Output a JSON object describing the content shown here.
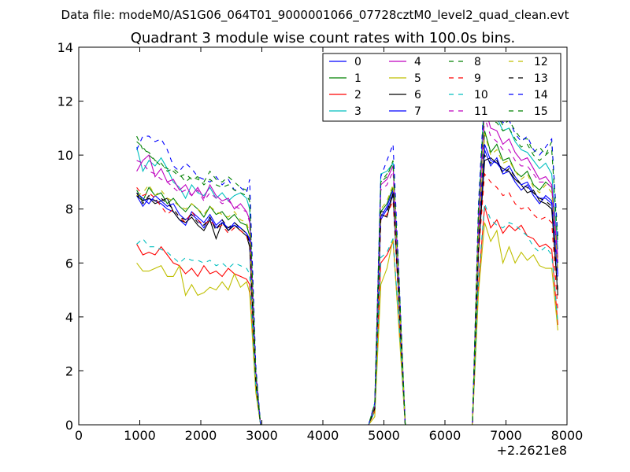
{
  "figure": {
    "suptitle": "Data file: modeM0/AS1G06_064T01_9000001066_07728cztM0_level2_quad_clean.evt"
  },
  "chart_data": {
    "type": "line",
    "title": "Quadrant 3 module wise count rates with 100.0s bins.",
    "xlabel": "",
    "ylabel": "",
    "x_offset_label": "+2.2621e8",
    "xlim": [
      0,
      8000
    ],
    "ylim": [
      0,
      14
    ],
    "xticks": [
      0,
      1000,
      2000,
      3000,
      4000,
      5000,
      6000,
      7000,
      8000
    ],
    "yticks": [
      0,
      2,
      4,
      6,
      8,
      10,
      12,
      14
    ],
    "legend_position": "top-right",
    "legend_columns": 4,
    "x": [
      950,
      1050,
      1150,
      1250,
      1350,
      1450,
      1550,
      1650,
      1750,
      1850,
      1950,
      2050,
      2150,
      2250,
      2350,
      2450,
      2550,
      2650,
      2750,
      2800,
      2900,
      2980,
      3100,
      4750,
      4850,
      4950,
      5050,
      5150,
      5250,
      5350,
      6450,
      6550,
      6650,
      6750,
      6850,
      6950,
      7050,
      7150,
      7250,
      7350,
      7450,
      7550,
      7650,
      7750,
      7850
    ],
    "series": [
      {
        "name": "0",
        "color": "#0000ff",
        "dash": "solid",
        "values": [
          8.5,
          8.1,
          8.4,
          8.3,
          8.2,
          8.0,
          7.9,
          7.6,
          7.4,
          7.9,
          7.7,
          7.5,
          7.8,
          7.4,
          7.6,
          7.2,
          7.5,
          7.3,
          7.1,
          6.8,
          1.6,
          0,
          0,
          0,
          0.6,
          7.6,
          8.0,
          8.5,
          4.5,
          0,
          0,
          6.5,
          10.2,
          9.6,
          9.9,
          9.3,
          9.4,
          9.0,
          8.7,
          8.9,
          8.5,
          8.2,
          8.5,
          8.3,
          5.5
        ]
      },
      {
        "name": "1",
        "color": "#008000",
        "dash": "solid",
        "values": [
          8.7,
          8.3,
          8.8,
          8.5,
          8.6,
          8.2,
          8.4,
          8.1,
          7.9,
          8.2,
          8.0,
          7.7,
          8.1,
          7.8,
          7.9,
          7.6,
          7.8,
          7.5,
          7.4,
          7.0,
          1.7,
          0,
          0,
          0,
          0.6,
          7.9,
          8.2,
          8.8,
          4.7,
          0,
          0,
          6.8,
          10.9,
          10.1,
          10.4,
          9.8,
          9.9,
          9.4,
          9.2,
          9.4,
          8.9,
          8.7,
          9.0,
          8.8,
          6.0
        ]
      },
      {
        "name": "2",
        "color": "#ff0000",
        "dash": "solid",
        "values": [
          6.7,
          6.3,
          6.4,
          6.3,
          6.6,
          6.3,
          6.0,
          5.9,
          5.6,
          5.8,
          5.5,
          5.9,
          5.6,
          5.7,
          5.5,
          5.8,
          5.6,
          5.5,
          5.4,
          5.2,
          1.3,
          0,
          0,
          0,
          0.5,
          6.0,
          6.3,
          6.8,
          3.6,
          0,
          0,
          5.2,
          8.1,
          7.3,
          7.6,
          7.1,
          7.4,
          7.2,
          7.4,
          7.0,
          6.9,
          6.6,
          6.7,
          6.5,
          3.7
        ]
      },
      {
        "name": "3",
        "color": "#00bfbf",
        "dash": "solid",
        "values": [
          10.3,
          9.4,
          9.8,
          9.6,
          9.9,
          9.5,
          9.0,
          8.8,
          8.4,
          8.9,
          8.6,
          8.5,
          8.8,
          8.4,
          8.6,
          8.3,
          8.5,
          8.6,
          8.4,
          8.0,
          2.0,
          0,
          0,
          0,
          0.8,
          9.3,
          9.4,
          9.7,
          5.2,
          0,
          0,
          7.8,
          12.4,
          11.5,
          11.4,
          10.9,
          11.0,
          10.5,
          10.2,
          10.1,
          9.8,
          9.5,
          9.7,
          9.3,
          6.5
        ]
      },
      {
        "name": "4",
        "color": "#bf00bf",
        "dash": "solid",
        "values": [
          9.4,
          9.8,
          10.0,
          9.2,
          9.5,
          9.0,
          9.1,
          8.7,
          8.9,
          8.5,
          8.8,
          8.4,
          8.9,
          8.5,
          8.3,
          8.4,
          8.0,
          8.2,
          7.9,
          7.6,
          1.9,
          0,
          0,
          0,
          0.7,
          8.9,
          9.1,
          9.6,
          5.0,
          0,
          0,
          7.5,
          11.8,
          11.0,
          10.9,
          10.4,
          10.6,
          10.1,
          9.8,
          9.9,
          9.5,
          9.1,
          9.2,
          8.9,
          6.2
        ]
      },
      {
        "name": "5",
        "color": "#bfbf00",
        "dash": "solid",
        "values": [
          6.0,
          5.7,
          5.7,
          5.8,
          5.9,
          5.5,
          5.5,
          5.9,
          4.8,
          5.2,
          4.8,
          4.9,
          5.1,
          5.0,
          5.3,
          5.0,
          5.6,
          5.1,
          5.3,
          4.9,
          1.2,
          0,
          0,
          0,
          0.3,
          5.2,
          5.8,
          6.9,
          3.4,
          0,
          0,
          4.9,
          7.5,
          6.8,
          7.2,
          6.0,
          6.6,
          6.0,
          6.4,
          6.1,
          6.3,
          5.9,
          5.8,
          5.8,
          3.5
        ]
      },
      {
        "name": "6",
        "color": "#000000",
        "dash": "solid",
        "values": [
          8.5,
          8.3,
          8.4,
          8.2,
          8.3,
          8.4,
          7.9,
          7.6,
          7.5,
          7.7,
          7.4,
          7.2,
          7.6,
          6.9,
          7.5,
          7.2,
          7.4,
          7.2,
          7.0,
          6.6,
          1.6,
          0,
          0,
          0,
          0.6,
          7.8,
          7.7,
          8.6,
          4.4,
          0,
          0,
          6.4,
          9.8,
          9.9,
          9.7,
          9.5,
          9.4,
          9.1,
          8.9,
          8.6,
          8.7,
          8.3,
          8.2,
          8.0,
          4.8
        ]
      },
      {
        "name": "7",
        "color": "#0000ff",
        "dash": "solid",
        "values": [
          8.6,
          8.4,
          8.2,
          8.5,
          8.3,
          8.1,
          8.2,
          7.8,
          7.6,
          7.8,
          7.6,
          7.3,
          7.7,
          7.3,
          7.5,
          7.3,
          7.4,
          7.3,
          7.1,
          6.9,
          1.6,
          0,
          0,
          0,
          0.6,
          7.7,
          8.1,
          8.7,
          4.5,
          0,
          0,
          6.7,
          10.4,
          9.8,
          9.7,
          9.4,
          9.6,
          9.2,
          8.9,
          9.0,
          8.6,
          8.4,
          8.4,
          8.2,
          5.6
        ]
      },
      {
        "name": "8",
        "color": "#008000",
        "dash": "dash",
        "values": [
          10.7,
          10.2,
          10.1,
          9.8,
          9.7,
          9.4,
          9.5,
          9.3,
          9.0,
          9.2,
          9.1,
          9.0,
          9.4,
          9.1,
          9.0,
          9.2,
          9.0,
          8.8,
          8.7,
          8.5,
          2.1,
          0,
          0,
          0,
          0.8,
          9.0,
          9.2,
          9.8,
          5.3,
          0,
          0,
          8.0,
          12.1,
          11.8,
          11.5,
          11.1,
          11.3,
          10.9,
          10.6,
          10.6,
          10.1,
          10.3,
          10.0,
          10.5,
          7.0
        ]
      },
      {
        "name": "9",
        "color": "#ff0000",
        "dash": "dash",
        "values": [
          8.8,
          8.5,
          8.6,
          8.4,
          8.1,
          7.8,
          8.0,
          7.7,
          7.5,
          7.9,
          7.6,
          7.4,
          7.6,
          7.3,
          7.4,
          7.1,
          7.3,
          7.2,
          7.0,
          6.7,
          1.6,
          0,
          0,
          0,
          0.6,
          7.6,
          7.8,
          8.3,
          4.3,
          0,
          0,
          6.3,
          9.3,
          9.0,
          8.8,
          8.5,
          8.6,
          8.2,
          8.0,
          8.1,
          7.8,
          7.6,
          7.7,
          7.5,
          4.2
        ]
      },
      {
        "name": "10",
        "color": "#00bfbf",
        "dash": "dash",
        "values": [
          6.7,
          6.9,
          6.6,
          6.6,
          6.5,
          6.4,
          6.2,
          6.0,
          6.2,
          6.1,
          6.1,
          6.0,
          6.1,
          5.9,
          6.0,
          5.8,
          6.0,
          5.9,
          5.8,
          5.6,
          1.4,
          0,
          0,
          0,
          0.5,
          6.2,
          6.4,
          6.9,
          3.7,
          0,
          0,
          5.4,
          8.2,
          7.6,
          7.4,
          7.3,
          7.5,
          7.4,
          7.2,
          7.0,
          6.6,
          6.4,
          6.6,
          6.3,
          3.8
        ]
      },
      {
        "name": "11",
        "color": "#bf00bf",
        "dash": "dash",
        "values": [
          9.8,
          9.7,
          9.4,
          9.3,
          9.1,
          9.0,
          8.8,
          8.6,
          8.7,
          8.5,
          8.7,
          8.3,
          8.6,
          8.4,
          8.2,
          8.3,
          8.1,
          8.0,
          7.9,
          7.5,
          1.9,
          0,
          0,
          0,
          0.7,
          8.7,
          8.9,
          9.4,
          4.9,
          0,
          0,
          7.3,
          11.4,
          10.7,
          10.5,
          10.2,
          10.2,
          9.8,
          9.6,
          9.6,
          9.3,
          9.0,
          9.0,
          8.8,
          6.0
        ]
      },
      {
        "name": "12",
        "color": "#bfbf00",
        "dash": "dash",
        "values": [
          8.5,
          8.6,
          8.9,
          8.5,
          8.7,
          8.4,
          8.3,
          8.1,
          8.0,
          8.2,
          8.0,
          7.8,
          8.1,
          7.9,
          7.8,
          7.7,
          7.9,
          7.6,
          7.5,
          7.1,
          1.7,
          0,
          0,
          0,
          0.6,
          8.0,
          8.3,
          8.9,
          4.7,
          0,
          0,
          6.9,
          10.8,
          10.0,
          10.2,
          9.7,
          9.8,
          9.4,
          9.1,
          9.3,
          8.8,
          8.6,
          8.9,
          8.6,
          5.8
        ]
      },
      {
        "name": "13",
        "color": "#000000",
        "dash": "dash",
        "values": [
          8.6,
          8.2,
          8.5,
          8.3,
          8.4,
          8.2,
          8.0,
          7.7,
          7.6,
          7.8,
          7.5,
          7.4,
          7.7,
          7.2,
          7.6,
          7.3,
          7.5,
          7.3,
          7.1,
          6.7,
          1.6,
          0,
          0,
          0,
          0.6,
          7.9,
          7.9,
          8.6,
          4.4,
          0,
          0,
          6.5,
          10.0,
          9.7,
          9.8,
          9.3,
          9.5,
          9.2,
          8.9,
          8.8,
          8.6,
          8.4,
          8.3,
          8.1,
          5.0
        ]
      },
      {
        "name": "14",
        "color": "#0000ff",
        "dash": "dash",
        "values": [
          10.2,
          10.7,
          10.7,
          10.5,
          10.6,
          10.2,
          9.6,
          9.4,
          9.7,
          9.5,
          9.2,
          9.1,
          9.0,
          9.2,
          8.9,
          9.1,
          8.7,
          8.8,
          8.6,
          9.1,
          2.2,
          0,
          0,
          0,
          0.8,
          9.2,
          9.8,
          10.4,
          5.4,
          0,
          0,
          8.2,
          12.5,
          11.6,
          11.7,
          11.2,
          11.3,
          10.8,
          10.5,
          10.7,
          10.2,
          10.0,
          10.3,
          10.6,
          6.8
        ]
      },
      {
        "name": "15",
        "color": "#008000",
        "dash": "dash",
        "values": [
          10.5,
          10.3,
          10.0,
          9.8,
          9.6,
          9.5,
          9.4,
          9.2,
          9.3,
          9.1,
          9.2,
          8.9,
          9.1,
          8.9,
          8.8,
          8.9,
          8.7,
          8.6,
          8.5,
          8.3,
          2.0,
          0,
          0,
          0,
          0.8,
          9.0,
          9.3,
          9.7,
          5.2,
          0,
          0,
          7.9,
          11.9,
          11.3,
          11.2,
          10.9,
          11.0,
          10.6,
          10.3,
          10.4,
          10.0,
          9.8,
          10.0,
          10.2,
          6.7
        ]
      }
    ]
  }
}
